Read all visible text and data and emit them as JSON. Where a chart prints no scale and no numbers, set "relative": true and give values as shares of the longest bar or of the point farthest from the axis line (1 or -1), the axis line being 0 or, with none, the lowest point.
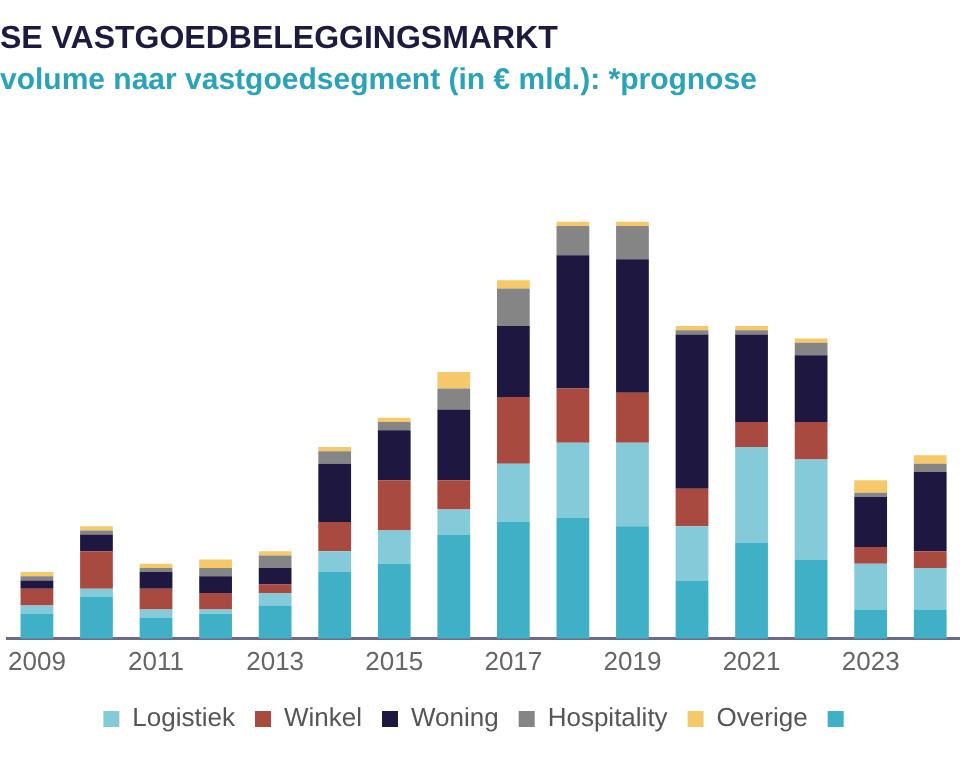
{
  "chart_data": {
    "type": "bar",
    "stacked": true,
    "relative": true,
    "title": "SE VASTGOEDBELEGGINGSMARKT",
    "subtitle": "volume naar vastgoedsegment (in € mld.): *prognose",
    "categories": [
      "2009",
      null,
      "2011",
      null,
      "2013",
      null,
      "2015",
      null,
      "2017",
      null,
      "2019",
      null,
      "2021",
      null,
      "2023",
      null
    ],
    "series": [
      {
        "color": "#3fb0c6",
        "values": [
          0.06,
          0.1,
          0.05,
          0.06,
          0.08,
          0.16,
          0.18,
          0.25,
          0.28,
          0.29,
          0.27,
          0.14,
          0.23,
          0.19,
          0.07,
          0.07
        ]
      },
      {
        "name": "Logistiek",
        "color": "#84cad8",
        "values": [
          0.02,
          0.02,
          0.02,
          0.01,
          0.03,
          0.05,
          0.08,
          0.06,
          0.14,
          0.18,
          0.2,
          0.13,
          0.23,
          0.24,
          0.11,
          0.1
        ]
      },
      {
        "name": "Winkel",
        "color": "#a84a3f",
        "values": [
          0.04,
          0.09,
          0.05,
          0.04,
          0.02,
          0.07,
          0.12,
          0.07,
          0.16,
          0.13,
          0.12,
          0.09,
          0.06,
          0.09,
          0.04,
          0.04
        ]
      },
      {
        "name": "Woning",
        "color": "#1e1740",
        "values": [
          0.02,
          0.04,
          0.04,
          0.04,
          0.04,
          0.14,
          0.12,
          0.17,
          0.17,
          0.32,
          0.32,
          0.37,
          0.21,
          0.16,
          0.12,
          0.19
        ]
      },
      {
        "name": "Hospitality",
        "color": "#858585",
        "values": [
          0.01,
          0.01,
          0.01,
          0.02,
          0.03,
          0.03,
          0.02,
          0.05,
          0.09,
          0.07,
          0.08,
          0.01,
          0.01,
          0.03,
          0.01,
          0.02
        ]
      },
      {
        "name": "Overige",
        "color": "#f5c96a",
        "values": [
          0.01,
          0.01,
          0.01,
          0.02,
          0.01,
          0.01,
          0.01,
          0.04,
          0.02,
          0.01,
          0.01,
          0.01,
          0.01,
          0.01,
          0.03,
          0.02
        ]
      }
    ],
    "legend": "bottom",
    "grid": false
  }
}
